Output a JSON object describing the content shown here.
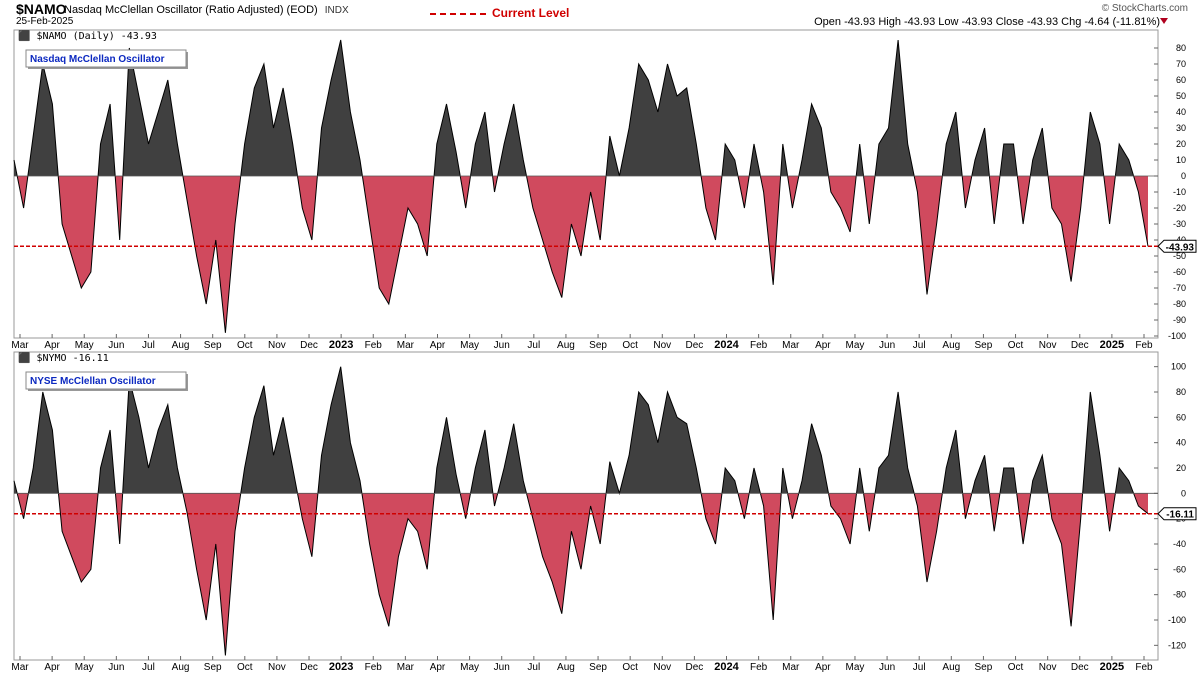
{
  "header": {
    "symbol": "$NAMO",
    "name": "Nasdaq McClellan Oscillator (Ratio Adjusted) (EOD)",
    "exchange": "INDX",
    "date": "25-Feb-2025",
    "legend_current_level": "Current Level",
    "watermark": "© StockCharts.com",
    "ohlc": "Open -43.93  High -43.93  Low -43.93  Close -43.93  Chg -4.64 (-11.81%)"
  },
  "colors": {
    "positive": "#404040",
    "negative": "#d04a5e",
    "line": "#000000",
    "current": "#d00000",
    "label_text": "#0b28c0"
  },
  "months": [
    "Mar",
    "Apr",
    "May",
    "Jun",
    "Jul",
    "Aug",
    "Sep",
    "Oct",
    "Nov",
    "Dec",
    "2023",
    "Feb",
    "Mar",
    "Apr",
    "May",
    "Jun",
    "Jul",
    "Aug",
    "Sep",
    "Oct",
    "Nov",
    "Dec",
    "2024",
    "Feb",
    "Mar",
    "Apr",
    "May",
    "Jun",
    "Jul",
    "Aug",
    "Sep",
    "Oct",
    "Nov",
    "Dec",
    "2025",
    "Feb"
  ],
  "chart_data": [
    {
      "type": "area",
      "title": "$NAMO (Daily) -43.93",
      "label": "Nasdaq McClellan Oscillator",
      "current_level": -43.93,
      "current_label": "-43.93",
      "ylim": [
        -100,
        90
      ],
      "yticks": [
        -100,
        -90,
        -80,
        -70,
        -60,
        -50,
        -40,
        -30,
        -20,
        -10,
        0,
        10,
        20,
        30,
        40,
        50,
        60,
        70,
        80
      ],
      "x_range": [
        "2022-03",
        "2025-02-25"
      ],
      "points": [
        [
          0,
          10
        ],
        [
          0.5,
          -20
        ],
        [
          1,
          25
        ],
        [
          1.5,
          70
        ],
        [
          2,
          45
        ],
        [
          2.5,
          -30
        ],
        [
          3,
          -50
        ],
        [
          3.5,
          -70
        ],
        [
          4,
          -60
        ],
        [
          4.5,
          20
        ],
        [
          5,
          45
        ],
        [
          5.5,
          -40
        ],
        [
          6,
          80
        ],
        [
          6.5,
          50
        ],
        [
          7,
          20
        ],
        [
          7.5,
          40
        ],
        [
          8,
          60
        ],
        [
          8.5,
          20
        ],
        [
          9,
          -15
        ],
        [
          9.5,
          -50
        ],
        [
          10,
          -80
        ],
        [
          10.5,
          -40
        ],
        [
          11,
          -98
        ],
        [
          11.5,
          -30
        ],
        [
          12,
          20
        ],
        [
          12.5,
          55
        ],
        [
          13,
          70
        ],
        [
          13.5,
          30
        ],
        [
          14,
          55
        ],
        [
          14.5,
          20
        ],
        [
          15,
          -20
        ],
        [
          15.5,
          -40
        ],
        [
          16,
          30
        ],
        [
          16.5,
          60
        ],
        [
          17,
          85
        ],
        [
          17.5,
          40
        ],
        [
          18,
          10
        ],
        [
          18.5,
          -30
        ],
        [
          19,
          -70
        ],
        [
          19.5,
          -80
        ],
        [
          20,
          -50
        ],
        [
          20.5,
          -20
        ],
        [
          21,
          -30
        ],
        [
          21.5,
          -50
        ],
        [
          22,
          20
        ],
        [
          22.5,
          45
        ],
        [
          23,
          15
        ],
        [
          23.5,
          -20
        ],
        [
          24,
          20
        ],
        [
          24.5,
          40
        ],
        [
          25,
          -10
        ],
        [
          25.5,
          20
        ],
        [
          26,
          45
        ],
        [
          26.5,
          10
        ],
        [
          27,
          -20
        ],
        [
          27.5,
          -40
        ],
        [
          28,
          -60
        ],
        [
          28.5,
          -76
        ],
        [
          29,
          -30
        ],
        [
          29.5,
          -50
        ],
        [
          30,
          -10
        ],
        [
          30.5,
          -40
        ],
        [
          31,
          25
        ],
        [
          31.5,
          0
        ],
        [
          32,
          30
        ],
        [
          32.5,
          70
        ],
        [
          33,
          60
        ],
        [
          33.5,
          40
        ],
        [
          34,
          70
        ],
        [
          34.5,
          50
        ],
        [
          35,
          55
        ],
        [
          35.5,
          20
        ],
        [
          36,
          -20
        ],
        [
          36.5,
          -40
        ],
        [
          37,
          20
        ],
        [
          37.5,
          10
        ],
        [
          38,
          -20
        ],
        [
          38.5,
          20
        ],
        [
          39,
          -10
        ],
        [
          39.5,
          -68
        ],
        [
          40,
          20
        ],
        [
          40.5,
          -20
        ],
        [
          41,
          10
        ],
        [
          41.5,
          45
        ],
        [
          42,
          30
        ],
        [
          42.5,
          -10
        ],
        [
          43,
          -20
        ],
        [
          43.5,
          -35
        ],
        [
          44,
          20
        ],
        [
          44.5,
          -30
        ],
        [
          45,
          20
        ],
        [
          45.5,
          30
        ],
        [
          46,
          85
        ],
        [
          46.5,
          20
        ],
        [
          47,
          -10
        ],
        [
          47.5,
          -74
        ],
        [
          48,
          -30
        ],
        [
          48.5,
          20
        ],
        [
          49,
          40
        ],
        [
          49.5,
          -20
        ],
        [
          50,
          10
        ],
        [
          50.5,
          30
        ],
        [
          51,
          -30
        ],
        [
          51.5,
          20
        ],
        [
          52,
          20
        ],
        [
          52.5,
          -30
        ],
        [
          53,
          10
        ],
        [
          53.5,
          30
        ],
        [
          54,
          -20
        ],
        [
          54.5,
          -30
        ],
        [
          55,
          -66
        ],
        [
          55.5,
          -20
        ],
        [
          56,
          40
        ],
        [
          56.5,
          20
        ],
        [
          57,
          -30
        ],
        [
          57.5,
          20
        ],
        [
          58,
          10
        ],
        [
          58.5,
          -10
        ],
        [
          59,
          -43.93
        ]
      ]
    },
    {
      "type": "area",
      "title": "$NYMO -16.11",
      "label": "NYSE McClellan Oscillator",
      "current_level": -16.11,
      "current_label": "-16.11",
      "ylim": [
        -130,
        110
      ],
      "yticks": [
        -120,
        -100,
        -80,
        -60,
        -40,
        -20,
        0,
        20,
        40,
        60,
        80,
        100
      ],
      "x_range": [
        "2022-03",
        "2025-02-25"
      ],
      "points": [
        [
          0,
          10
        ],
        [
          0.5,
          -20
        ],
        [
          1,
          20
        ],
        [
          1.5,
          80
        ],
        [
          2,
          50
        ],
        [
          2.5,
          -30
        ],
        [
          3,
          -50
        ],
        [
          3.5,
          -70
        ],
        [
          4,
          -60
        ],
        [
          4.5,
          20
        ],
        [
          5,
          50
        ],
        [
          5.5,
          -40
        ],
        [
          6,
          90
        ],
        [
          6.5,
          60
        ],
        [
          7,
          20
        ],
        [
          7.5,
          50
        ],
        [
          8,
          70
        ],
        [
          8.5,
          20
        ],
        [
          9,
          -15
        ],
        [
          9.5,
          -60
        ],
        [
          10,
          -100
        ],
        [
          10.5,
          -40
        ],
        [
          11,
          -128
        ],
        [
          11.5,
          -30
        ],
        [
          12,
          20
        ],
        [
          12.5,
          60
        ],
        [
          13,
          85
        ],
        [
          13.5,
          30
        ],
        [
          14,
          60
        ],
        [
          14.5,
          20
        ],
        [
          15,
          -20
        ],
        [
          15.5,
          -50
        ],
        [
          16,
          30
        ],
        [
          16.5,
          70
        ],
        [
          17,
          100
        ],
        [
          17.5,
          40
        ],
        [
          18,
          10
        ],
        [
          18.5,
          -40
        ],
        [
          19,
          -80
        ],
        [
          19.5,
          -105
        ],
        [
          20,
          -50
        ],
        [
          20.5,
          -20
        ],
        [
          21,
          -30
        ],
        [
          21.5,
          -60
        ],
        [
          22,
          20
        ],
        [
          22.5,
          60
        ],
        [
          23,
          15
        ],
        [
          23.5,
          -20
        ],
        [
          24,
          20
        ],
        [
          24.5,
          50
        ],
        [
          25,
          -10
        ],
        [
          25.5,
          20
        ],
        [
          26,
          55
        ],
        [
          26.5,
          10
        ],
        [
          27,
          -20
        ],
        [
          27.5,
          -50
        ],
        [
          28,
          -70
        ],
        [
          28.5,
          -95
        ],
        [
          29,
          -30
        ],
        [
          29.5,
          -60
        ],
        [
          30,
          -10
        ],
        [
          30.5,
          -40
        ],
        [
          31,
          25
        ],
        [
          31.5,
          0
        ],
        [
          32,
          30
        ],
        [
          32.5,
          80
        ],
        [
          33,
          70
        ],
        [
          33.5,
          40
        ],
        [
          34,
          80
        ],
        [
          34.5,
          60
        ],
        [
          35,
          55
        ],
        [
          35.5,
          20
        ],
        [
          36,
          -20
        ],
        [
          36.5,
          -40
        ],
        [
          37,
          20
        ],
        [
          37.5,
          10
        ],
        [
          38,
          -20
        ],
        [
          38.5,
          20
        ],
        [
          39,
          -10
        ],
        [
          39.5,
          -100
        ],
        [
          40,
          20
        ],
        [
          40.5,
          -20
        ],
        [
          41,
          10
        ],
        [
          41.5,
          55
        ],
        [
          42,
          30
        ],
        [
          42.5,
          -10
        ],
        [
          43,
          -20
        ],
        [
          43.5,
          -40
        ],
        [
          44,
          20
        ],
        [
          44.5,
          -30
        ],
        [
          45,
          20
        ],
        [
          45.5,
          30
        ],
        [
          46,
          80
        ],
        [
          46.5,
          20
        ],
        [
          47,
          -10
        ],
        [
          47.5,
          -70
        ],
        [
          48,
          -30
        ],
        [
          48.5,
          20
        ],
        [
          49,
          50
        ],
        [
          49.5,
          -20
        ],
        [
          50,
          10
        ],
        [
          50.5,
          30
        ],
        [
          51,
          -30
        ],
        [
          51.5,
          20
        ],
        [
          52,
          20
        ],
        [
          52.5,
          -40
        ],
        [
          53,
          10
        ],
        [
          53.5,
          30
        ],
        [
          54,
          -20
        ],
        [
          54.5,
          -40
        ],
        [
          55,
          -105
        ],
        [
          55.5,
          -20
        ],
        [
          56,
          80
        ],
        [
          56.5,
          30
        ],
        [
          57,
          -30
        ],
        [
          57.5,
          20
        ],
        [
          58,
          10
        ],
        [
          58.5,
          -10
        ],
        [
          59,
          -16.11
        ]
      ]
    }
  ]
}
